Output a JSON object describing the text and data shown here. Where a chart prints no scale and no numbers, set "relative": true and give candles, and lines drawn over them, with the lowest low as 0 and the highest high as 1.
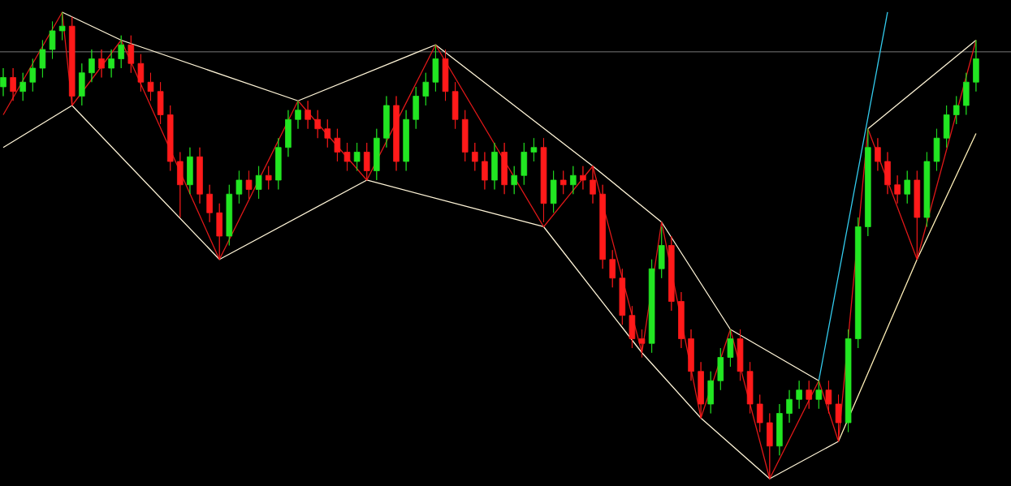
{
  "chart_data": {
    "type": "candlestick",
    "relative": true,
    "categories": [
      null,
      null,
      null,
      null,
      null,
      null,
      null,
      null,
      null,
      null,
      null,
      null,
      null,
      null,
      null,
      null,
      null,
      null,
      null,
      null,
      null,
      null,
      null,
      null,
      null,
      null,
      null,
      null,
      null,
      null,
      null,
      null,
      null,
      null,
      null,
      null,
      null,
      null,
      null,
      null,
      null,
      null,
      null,
      null,
      null,
      null,
      null,
      null,
      null,
      null,
      null,
      null,
      null,
      null,
      null,
      null,
      null,
      null,
      null,
      null,
      null,
      null,
      null,
      null,
      null,
      null,
      null,
      null,
      null,
      null,
      null,
      null,
      null,
      null,
      null,
      null,
      null,
      null,
      null,
      null,
      null,
      null,
      null,
      null,
      null,
      null,
      null,
      null,
      null,
      null,
      null,
      null,
      null,
      null,
      null,
      null,
      null,
      null,
      null,
      null
    ],
    "ohlc": [
      [
        0.84,
        0.88,
        0.82,
        0.86
      ],
      [
        0.86,
        0.88,
        0.81,
        0.83
      ],
      [
        0.83,
        0.87,
        0.81,
        0.85
      ],
      [
        0.85,
        0.9,
        0.83,
        0.88
      ],
      [
        0.88,
        0.94,
        0.86,
        0.92
      ],
      [
        0.92,
        0.98,
        0.9,
        0.96
      ],
      [
        0.96,
        1.0,
        0.94,
        0.97
      ],
      [
        0.97,
        0.99,
        0.8,
        0.82
      ],
      [
        0.82,
        0.89,
        0.8,
        0.87
      ],
      [
        0.87,
        0.92,
        0.85,
        0.9
      ],
      [
        0.9,
        0.92,
        0.86,
        0.88
      ],
      [
        0.88,
        0.92,
        0.86,
        0.9
      ],
      [
        0.9,
        0.95,
        0.88,
        0.93
      ],
      [
        0.93,
        0.95,
        0.87,
        0.89
      ],
      [
        0.89,
        0.91,
        0.83,
        0.85
      ],
      [
        0.85,
        0.87,
        0.81,
        0.83
      ],
      [
        0.83,
        0.85,
        0.76,
        0.78
      ],
      [
        0.78,
        0.8,
        0.66,
        0.68
      ],
      [
        0.68,
        0.7,
        0.56,
        0.63
      ],
      [
        0.63,
        0.71,
        0.61,
        0.69
      ],
      [
        0.69,
        0.71,
        0.59,
        0.61
      ],
      [
        0.61,
        0.63,
        0.55,
        0.57
      ],
      [
        0.57,
        0.59,
        0.47,
        0.52
      ],
      [
        0.52,
        0.63,
        0.5,
        0.61
      ],
      [
        0.61,
        0.66,
        0.59,
        0.64
      ],
      [
        0.64,
        0.66,
        0.6,
        0.62
      ],
      [
        0.62,
        0.67,
        0.6,
        0.65
      ],
      [
        0.65,
        0.67,
        0.62,
        0.64
      ],
      [
        0.64,
        0.73,
        0.62,
        0.71
      ],
      [
        0.71,
        0.79,
        0.69,
        0.77
      ],
      [
        0.77,
        0.81,
        0.75,
        0.79
      ],
      [
        0.79,
        0.81,
        0.75,
        0.77
      ],
      [
        0.77,
        0.79,
        0.73,
        0.75
      ],
      [
        0.75,
        0.77,
        0.71,
        0.73
      ],
      [
        0.73,
        0.75,
        0.68,
        0.7
      ],
      [
        0.7,
        0.72,
        0.66,
        0.68
      ],
      [
        0.68,
        0.72,
        0.66,
        0.7
      ],
      [
        0.7,
        0.72,
        0.64,
        0.66
      ],
      [
        0.66,
        0.75,
        0.64,
        0.73
      ],
      [
        0.73,
        0.82,
        0.71,
        0.8
      ],
      [
        0.8,
        0.82,
        0.66,
        0.68
      ],
      [
        0.68,
        0.79,
        0.66,
        0.77
      ],
      [
        0.77,
        0.84,
        0.75,
        0.82
      ],
      [
        0.82,
        0.87,
        0.8,
        0.85
      ],
      [
        0.85,
        0.93,
        0.83,
        0.9
      ],
      [
        0.9,
        0.92,
        0.81,
        0.83
      ],
      [
        0.83,
        0.85,
        0.75,
        0.77
      ],
      [
        0.77,
        0.79,
        0.68,
        0.7
      ],
      [
        0.7,
        0.72,
        0.66,
        0.68
      ],
      [
        0.68,
        0.7,
        0.62,
        0.64
      ],
      [
        0.64,
        0.72,
        0.62,
        0.7
      ],
      [
        0.7,
        0.72,
        0.61,
        0.63
      ],
      [
        0.63,
        0.67,
        0.61,
        0.65
      ],
      [
        0.65,
        0.72,
        0.63,
        0.7
      ],
      [
        0.7,
        0.73,
        0.68,
        0.71
      ],
      [
        0.71,
        0.73,
        0.55,
        0.59
      ],
      [
        0.59,
        0.66,
        0.57,
        0.64
      ],
      [
        0.64,
        0.66,
        0.61,
        0.63
      ],
      [
        0.63,
        0.67,
        0.61,
        0.65
      ],
      [
        0.65,
        0.67,
        0.62,
        0.64
      ],
      [
        0.64,
        0.67,
        0.59,
        0.61
      ],
      [
        0.61,
        0.63,
        0.45,
        0.47
      ],
      [
        0.47,
        0.49,
        0.41,
        0.43
      ],
      [
        0.43,
        0.45,
        0.33,
        0.35
      ],
      [
        0.35,
        0.37,
        0.28,
        0.3
      ],
      [
        0.3,
        0.32,
        0.26,
        0.29
      ],
      [
        0.29,
        0.47,
        0.27,
        0.45
      ],
      [
        0.45,
        0.54,
        0.43,
        0.5
      ],
      [
        0.5,
        0.52,
        0.36,
        0.38
      ],
      [
        0.38,
        0.4,
        0.28,
        0.3
      ],
      [
        0.3,
        0.32,
        0.21,
        0.23
      ],
      [
        0.23,
        0.25,
        0.13,
        0.16
      ],
      [
        0.16,
        0.23,
        0.14,
        0.21
      ],
      [
        0.21,
        0.28,
        0.19,
        0.26
      ],
      [
        0.26,
        0.32,
        0.24,
        0.3
      ],
      [
        0.3,
        0.32,
        0.21,
        0.23
      ],
      [
        0.23,
        0.25,
        0.14,
        0.16
      ],
      [
        0.16,
        0.18,
        0.1,
        0.12
      ],
      [
        0.12,
        0.14,
        0.0,
        0.07
      ],
      [
        0.07,
        0.16,
        0.05,
        0.14
      ],
      [
        0.14,
        0.19,
        0.12,
        0.17
      ],
      [
        0.17,
        0.21,
        0.15,
        0.19
      ],
      [
        0.19,
        0.21,
        0.15,
        0.17
      ],
      [
        0.17,
        0.21,
        0.15,
        0.19
      ],
      [
        0.19,
        0.21,
        0.14,
        0.16
      ],
      [
        0.16,
        0.18,
        0.08,
        0.12
      ],
      [
        0.12,
        0.32,
        0.1,
        0.3
      ],
      [
        0.3,
        0.56,
        0.28,
        0.54
      ],
      [
        0.54,
        0.75,
        0.52,
        0.71
      ],
      [
        0.71,
        0.73,
        0.66,
        0.68
      ],
      [
        0.68,
        0.7,
        0.61,
        0.63
      ],
      [
        0.63,
        0.65,
        0.59,
        0.61
      ],
      [
        0.61,
        0.66,
        0.59,
        0.64
      ],
      [
        0.64,
        0.66,
        0.47,
        0.56
      ],
      [
        0.56,
        0.7,
        0.54,
        0.68
      ],
      [
        0.68,
        0.75,
        0.66,
        0.73
      ],
      [
        0.73,
        0.8,
        0.71,
        0.78
      ],
      [
        0.78,
        0.82,
        0.76,
        0.8
      ],
      [
        0.8,
        0.87,
        0.78,
        0.85
      ],
      [
        0.85,
        0.94,
        0.83,
        0.9
      ]
    ],
    "colors": [
      "#22e622",
      "#ff1a1a",
      "#22e622",
      "#22e622",
      "#22e622",
      "#22e622",
      "#22e622",
      "#ff1a1a",
      "#22e622",
      "#22e622",
      "#ff1a1a",
      "#22e622",
      "#22e622",
      "#ff1a1a",
      "#ff1a1a",
      "#ff1a1a",
      "#ff1a1a",
      "#ff1a1a",
      "#ff1a1a",
      "#22e622",
      "#ff1a1a",
      "#ff1a1a",
      "#ff1a1a",
      "#22e622",
      "#22e622",
      "#ff1a1a",
      "#22e622",
      "#ff1a1a",
      "#22e622",
      "#22e622",
      "#22e622",
      "#ff1a1a",
      "#ff1a1a",
      "#ff1a1a",
      "#ff1a1a",
      "#ff1a1a",
      "#22e622",
      "#ff1a1a",
      "#22e622",
      "#22e622",
      "#ff1a1a",
      "#22e622",
      "#22e622",
      "#22e622",
      "#22e622",
      "#ff1a1a",
      "#ff1a1a",
      "#ff1a1a",
      "#ff1a1a",
      "#ff1a1a",
      "#22e622",
      "#ff1a1a",
      "#22e622",
      "#22e622",
      "#22e622",
      "#ff1a1a",
      "#22e622",
      "#ff1a1a",
      "#22e622",
      "#ff1a1a",
      "#ff1a1a",
      "#ff1a1a",
      "#ff1a1a",
      "#ff1a1a",
      "#ff1a1a",
      "#ff1a1a",
      "#22e622",
      "#22e622",
      "#ff1a1a",
      "#ff1a1a",
      "#ff1a1a",
      "#ff1a1a",
      "#22e622",
      "#22e622",
      "#22e622",
      "#ff1a1a",
      "#ff1a1a",
      "#ff1a1a",
      "#ff1a1a",
      "#22e622",
      "#22e622",
      "#22e622",
      "#ff1a1a",
      "#22e622",
      "#ff1a1a",
      "#ff1a1a",
      "#22e622",
      "#22e622",
      "#22e622",
      "#ff1a1a",
      "#ff1a1a",
      "#ff1a1a",
      "#22e622",
      "#ff1a1a",
      "#22e622",
      "#22e622",
      "#22e622",
      "#22e622",
      "#22e622",
      "#22e622"
    ],
    "series": [
      {
        "type": "line",
        "color": "#fff5d8",
        "values": [
          null,
          null,
          null,
          null,
          null,
          null,
          1.0,
          null,
          null,
          null,
          null,
          null,
          0.94,
          null,
          null,
          null,
          null,
          null,
          null,
          null,
          null,
          null,
          null,
          null,
          null,
          null,
          null,
          null,
          null,
          null,
          0.81,
          null,
          null,
          null,
          null,
          null,
          null,
          null,
          null,
          null,
          null,
          null,
          null,
          null,
          0.93,
          null,
          null,
          null,
          null,
          null,
          null,
          null,
          null,
          null,
          null,
          null,
          null,
          null,
          null,
          null,
          0.67,
          null,
          null,
          null,
          null,
          null,
          null,
          0.55,
          null,
          null,
          null,
          null,
          null,
          null,
          0.32,
          null,
          null,
          null,
          null,
          null,
          null,
          null,
          null,
          0.21,
          null,
          null,
          null,
          null,
          null,
          null,
          null,
          null,
          null,
          null,
          null,
          null,
          null,
          null,
          null,
          null
        ]
      },
      {
        "type": "line",
        "color": "#fff5d8",
        "values": [
          0.71,
          null,
          null,
          null,
          null,
          null,
          null,
          0.8,
          null,
          null,
          null,
          null,
          null,
          null,
          null,
          null,
          null,
          null,
          null,
          null,
          null,
          null,
          0.47,
          null,
          null,
          null,
          null,
          null,
          null,
          null,
          null,
          null,
          null,
          null,
          null,
          null,
          null,
          0.64,
          null,
          null,
          null,
          null,
          null,
          null,
          null,
          null,
          null,
          null,
          null,
          null,
          null,
          null,
          null,
          null,
          null,
          0.54,
          null,
          null,
          null,
          null,
          null,
          null,
          null,
          null,
          null,
          0.27,
          null,
          null,
          null,
          null,
          null,
          0.13,
          null,
          null,
          null,
          null,
          null,
          null,
          0,
          null,
          null,
          null,
          null,
          null,
          null,
          0.08,
          null,
          null,
          null,
          null,
          null,
          null,
          null,
          null,
          null,
          null,
          null,
          null,
          null,
          null
        ]
      },
      {
        "type": "line",
        "color": "#fff5d8",
        "values": [
          null,
          null,
          null,
          null,
          null,
          null,
          null,
          null,
          null,
          null,
          null,
          null,
          null,
          null,
          null,
          null,
          null,
          null,
          null,
          null,
          null,
          null,
          null,
          null,
          null,
          null,
          null,
          null,
          null,
          null,
          null,
          null,
          null,
          null,
          null,
          null,
          null,
          null,
          null,
          null,
          null,
          null,
          null,
          null,
          null,
          null,
          null,
          null,
          null,
          null,
          null,
          null,
          null,
          null,
          null,
          null,
          null,
          null,
          null,
          null,
          null,
          null,
          null,
          null,
          null,
          null,
          null,
          null,
          null,
          null,
          null,
          null,
          null,
          null,
          null,
          null,
          null,
          null,
          null,
          null,
          null,
          null,
          null,
          null,
          null,
          null,
          null,
          null,
          0.75,
          null,
          null,
          null,
          null,
          null,
          null,
          null,
          null,
          null,
          null,
          0.94
        ]
      },
      {
        "type": "line",
        "color": "#fff0b8",
        "values": [
          null,
          null,
          null,
          null,
          null,
          null,
          null,
          null,
          null,
          null,
          null,
          null,
          null,
          null,
          null,
          null,
          null,
          null,
          null,
          null,
          null,
          null,
          null,
          null,
          null,
          null,
          null,
          null,
          null,
          null,
          null,
          null,
          null,
          null,
          null,
          null,
          null,
          null,
          null,
          null,
          null,
          null,
          null,
          null,
          null,
          null,
          null,
          null,
          null,
          null,
          null,
          null,
          null,
          null,
          null,
          null,
          null,
          null,
          null,
          null,
          null,
          null,
          null,
          null,
          null,
          null,
          null,
          null,
          null,
          null,
          null,
          null,
          null,
          null,
          null,
          null,
          null,
          null,
          null,
          null,
          null,
          null,
          null,
          null,
          null,
          0.08,
          null,
          null,
          null,
          null,
          null,
          null,
          null,
          0.47,
          null,
          null,
          null,
          null,
          null,
          0.74
        ]
      },
      {
        "type": "line",
        "color": "#33ccee",
        "values": [
          null,
          null,
          null,
          null,
          null,
          null,
          null,
          null,
          null,
          null,
          null,
          null,
          null,
          null,
          null,
          null,
          null,
          null,
          null,
          null,
          null,
          null,
          null,
          null,
          null,
          null,
          null,
          null,
          null,
          null,
          null,
          null,
          null,
          null,
          null,
          null,
          null,
          null,
          null,
          null,
          null,
          null,
          null,
          null,
          null,
          null,
          null,
          null,
          null,
          null,
          null,
          null,
          null,
          null,
          null,
          null,
          null,
          null,
          null,
          null,
          null,
          null,
          null,
          null,
          null,
          null,
          null,
          null,
          null,
          null,
          null,
          null,
          null,
          null,
          null,
          null,
          null,
          null,
          null,
          null,
          null,
          null,
          null,
          0.21,
          null,
          null,
          null,
          null,
          null,
          null,
          1.0,
          null,
          null,
          null,
          null,
          null,
          null,
          null,
          null,
          null
        ]
      },
      {
        "type": "line",
        "color": "#e01818",
        "values": [
          0.78,
          null,
          null,
          null,
          null,
          null,
          1.0,
          0.8,
          null,
          null,
          null,
          null,
          0.94,
          null,
          null,
          null,
          null,
          null,
          null,
          null,
          null,
          null,
          0.47,
          null,
          null,
          null,
          null,
          null,
          null,
          null,
          0.81,
          null,
          null,
          null,
          null,
          null,
          null,
          0.64,
          null,
          null,
          null,
          null,
          null,
          null,
          0.93,
          null,
          null,
          null,
          null,
          null,
          null,
          null,
          null,
          null,
          null,
          0.54,
          null,
          null,
          null,
          null,
          0.67,
          null,
          null,
          null,
          null,
          0.27,
          null,
          0.55,
          null,
          null,
          null,
          0.13,
          null,
          null,
          0.32,
          null,
          null,
          null,
          0,
          null,
          null,
          null,
          null,
          0.21,
          null,
          0.08,
          null,
          null,
          0.75,
          null,
          null,
          null,
          null,
          0.47,
          null,
          null,
          null,
          null,
          null,
          0.94
        ]
      }
    ],
    "ref_lines": [
      {
        "axis": "y",
        "value": 0.915,
        "color": "#c8c8c8"
      }
    ]
  }
}
